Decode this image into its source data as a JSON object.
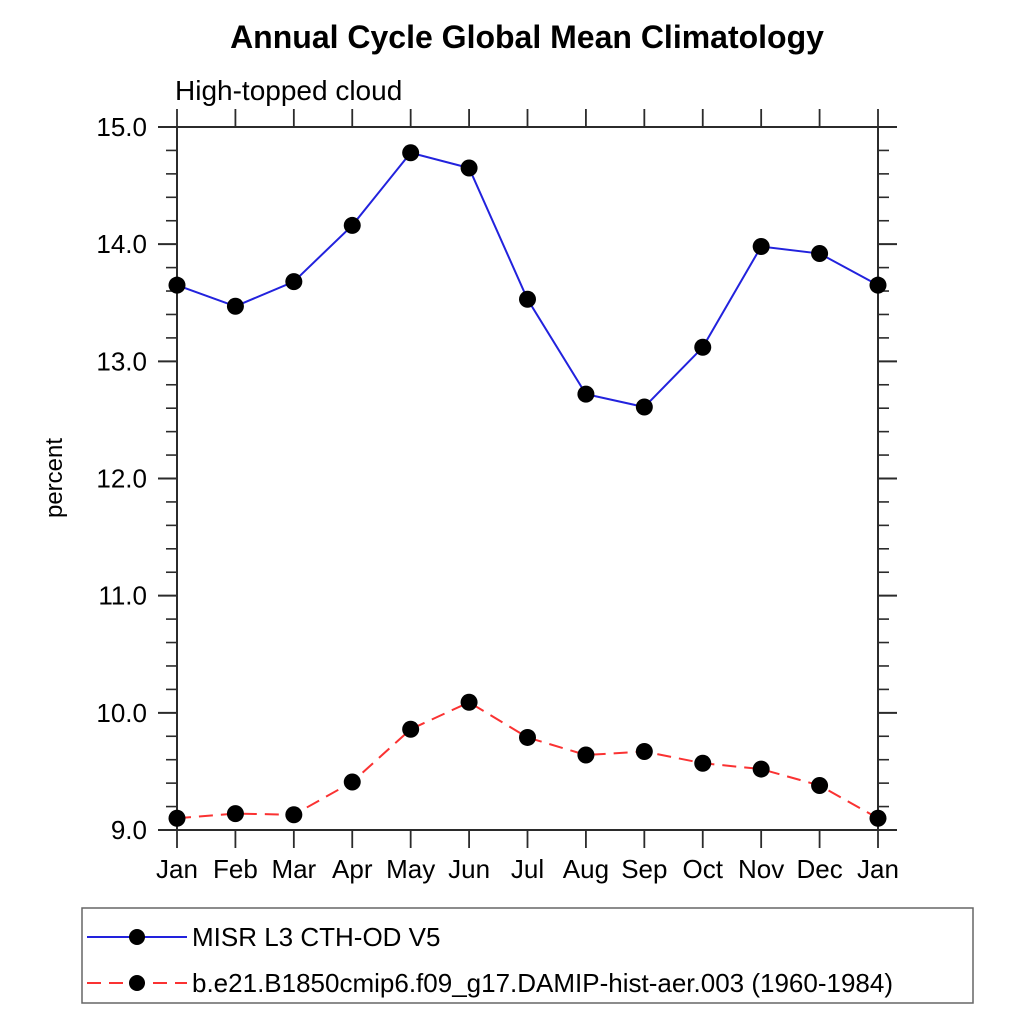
{
  "title": "Annual Cycle Global Mean Climatology",
  "subtitle": "High-topped cloud",
  "ylabel": "percent",
  "chart_data": {
    "type": "line",
    "categories": [
      "Jan",
      "Feb",
      "Mar",
      "Apr",
      "May",
      "Jun",
      "Jul",
      "Aug",
      "Sep",
      "Oct",
      "Nov",
      "Dec",
      "Jan"
    ],
    "series": [
      {
        "name": "MISR L3 CTH-OD V5",
        "line_style": "solid",
        "line_color": "#2222dd",
        "marker": "circle",
        "marker_color": "#000000",
        "values": [
          13.65,
          13.47,
          13.68,
          14.16,
          14.78,
          14.65,
          13.53,
          12.72,
          12.61,
          13.12,
          13.98,
          13.92,
          13.65
        ]
      },
      {
        "name": "b.e21.B1850cmip6.f09_g17.DAMIP-hist-aer.003 (1960-1984)",
        "line_style": "dashed",
        "line_color": "#fa3232",
        "marker": "circle",
        "marker_color": "#000000",
        "values": [
          9.1,
          9.14,
          9.13,
          9.41,
          9.86,
          10.09,
          9.79,
          9.64,
          9.67,
          9.57,
          9.52,
          9.38,
          9.1
        ]
      }
    ],
    "title": "Annual Cycle Global Mean Climatology",
    "subtitle": "High-topped cloud",
    "xlabel": "",
    "ylabel": "percent",
    "ylim": [
      9.0,
      15.0
    ],
    "ytick_major_interval": 1.0,
    "ytick_minor_interval": 0.2,
    "ytick_label_format": "one-decimal",
    "grid": false,
    "legend_position": "bottom-left-boxed",
    "axis_color": "#2b2b2b"
  }
}
